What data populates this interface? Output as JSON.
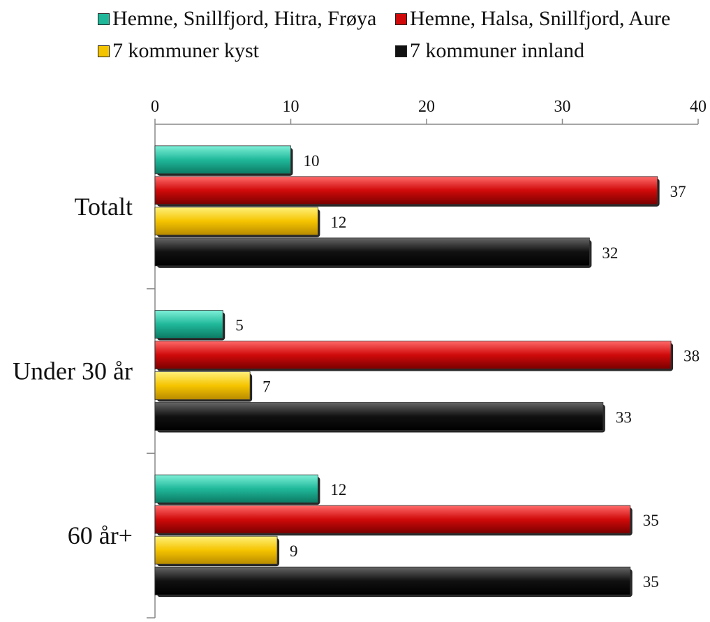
{
  "chart_data": {
    "type": "bar",
    "orientation": "horizontal",
    "categories": [
      "Totalt",
      "Under 30 år",
      "60 år+"
    ],
    "series": [
      {
        "name": "Hemne, Snillfjord, Hitra, Frøya",
        "color": "#20b89a",
        "values": [
          10,
          5,
          12
        ]
      },
      {
        "name": "Hemne, Halsa, Snillfjord, Aure",
        "color": "#d00a0a",
        "values": [
          37,
          38,
          35
        ]
      },
      {
        "name": "7 kommuner kyst",
        "color": "#f5c400",
        "values": [
          12,
          7,
          9
        ]
      },
      {
        "name": "7 kommuner innland",
        "color": "#111111",
        "values": [
          32,
          33,
          35
        ]
      }
    ],
    "xlim": [
      0,
      40
    ],
    "x_ticks": [
      "0",
      "10",
      "20",
      "30",
      "40"
    ],
    "x_axis_position": "top",
    "legend_position": "top",
    "grid": false
  }
}
